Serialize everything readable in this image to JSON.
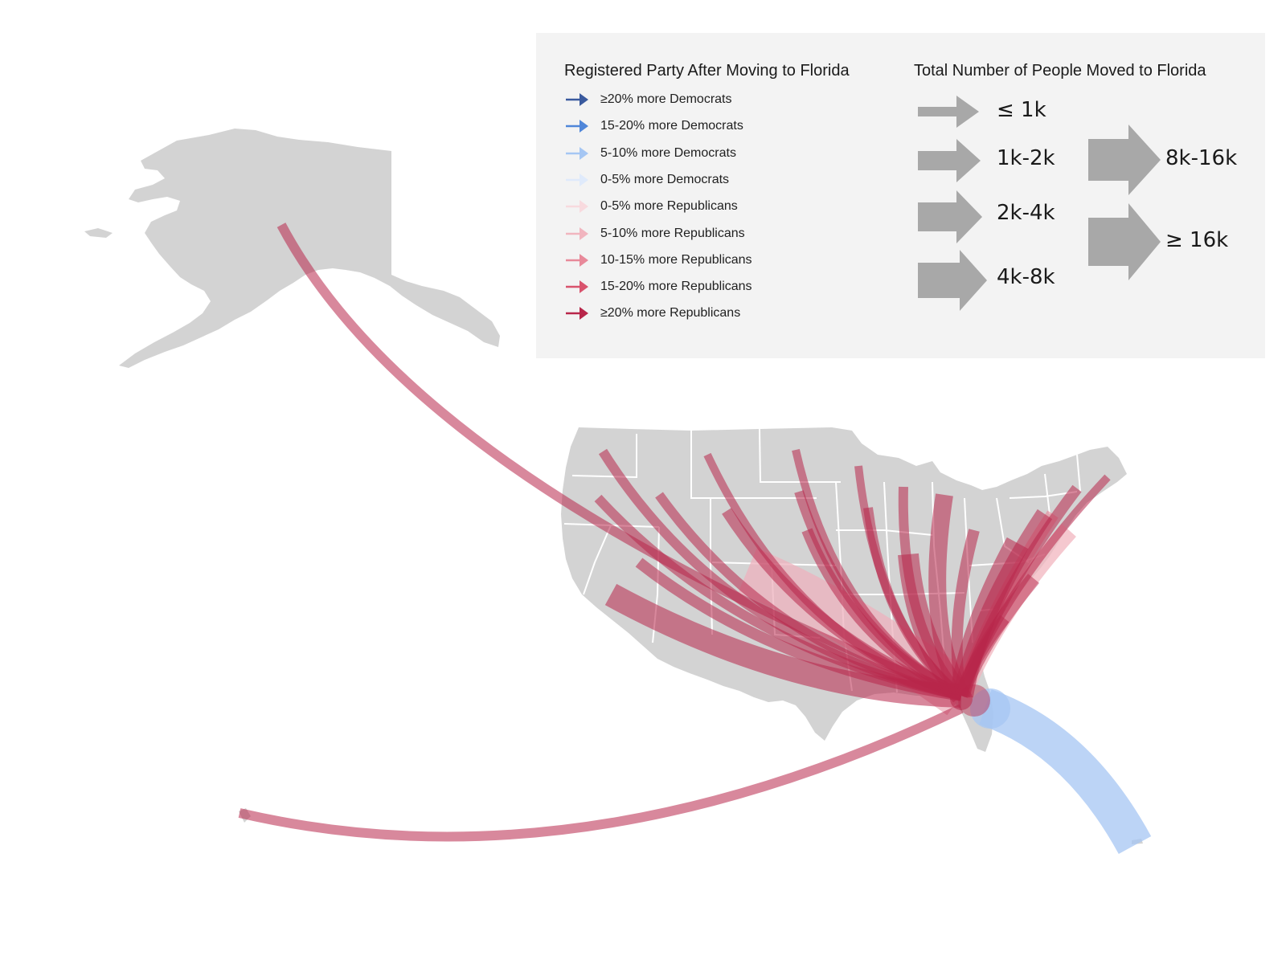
{
  "legend": {
    "party": {
      "title": "Registered Party After Moving to Florida",
      "items": [
        {
          "label": "≥20% more Democrats",
          "color": "#3a5a9e"
        },
        {
          "label": "15-20% more Democrats",
          "color": "#4f86d9"
        },
        {
          "label": "5-10% more Democrats",
          "color": "#a5c6f3"
        },
        {
          "label": "0-5% more Democrats",
          "color": "#dfeafb"
        },
        {
          "label": "0-5% more Republicans",
          "color": "#f8dade"
        },
        {
          "label": "5-10% more Republicans",
          "color": "#f1b5bf"
        },
        {
          "label": "10-15% more Republicans",
          "color": "#e8899a"
        },
        {
          "label": "15-20% more Republicans",
          "color": "#d9536d"
        },
        {
          "label": "≥20% more Republicans",
          "color": "#b8264a"
        }
      ]
    },
    "size": {
      "title": "Total Number of People Moved to Florida",
      "items": [
        {
          "label": "≤ 1k"
        },
        {
          "label": "1k-2k"
        },
        {
          "label": "2k-4k"
        },
        {
          "label": "4k-8k"
        },
        {
          "label": "8k-16k"
        },
        {
          "label": "≥ 16k"
        }
      ]
    }
  },
  "map": {
    "land_color": "#d3d3d3",
    "destination": "Florida",
    "flow_colors": {
      "republican_strong": "#b8264a",
      "republican_light": "#eeb2bd",
      "democrat_light": "#a5c6f3"
    }
  }
}
